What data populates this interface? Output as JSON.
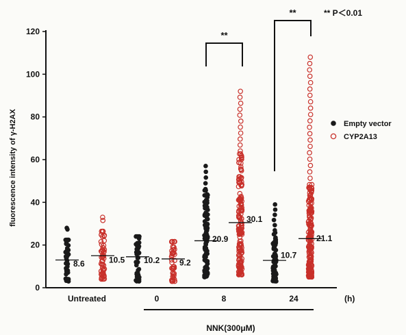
{
  "chart_data": {
    "type": "scatter",
    "ylabel": "fluorescence intensity of γ-H2AX",
    "ylim": [
      0,
      120
    ],
    "yticks": [
      0,
      20,
      40,
      60,
      80,
      100,
      120
    ],
    "grid": false,
    "groups": [
      "Untreated",
      "0",
      "8",
      "24"
    ],
    "x_unit": "(h)",
    "treatment_label": "NNK(300μM)",
    "significance_note": "** P＜0.01",
    "significance_markers": [
      {
        "group": "8",
        "text": "**"
      },
      {
        "group": "24",
        "text": "**"
      }
    ],
    "legend": {
      "position": "right",
      "entries": [
        {
          "name": "Empty vector",
          "color": "#1a1a1a",
          "marker": "filled-circle"
        },
        {
          "name": "CYP2A13",
          "color": "#c8302a",
          "marker": "open-circle"
        }
      ]
    },
    "series": [
      {
        "name": "Empty vector",
        "color": "#1a1a1a",
        "means": [
          8.6,
          10.2,
          20.9,
          10.7
        ],
        "mean_lines": [
          13,
          14.5,
          22,
          12.8
        ],
        "ranges": [
          [
            3,
            28
          ],
          [
            3,
            30
          ],
          [
            5,
            57
          ],
          [
            3,
            39
          ]
        ]
      },
      {
        "name": "CYP2A13",
        "color": "#c8302a",
        "means": [
          10.5,
          9.2,
          30.1,
          21.1
        ],
        "mean_lines": [
          15,
          13.5,
          30.5,
          23
        ],
        "ranges": [
          [
            4,
            33
          ],
          [
            3,
            27
          ],
          [
            6,
            92
          ],
          [
            5,
            108
          ]
        ]
      }
    ]
  }
}
